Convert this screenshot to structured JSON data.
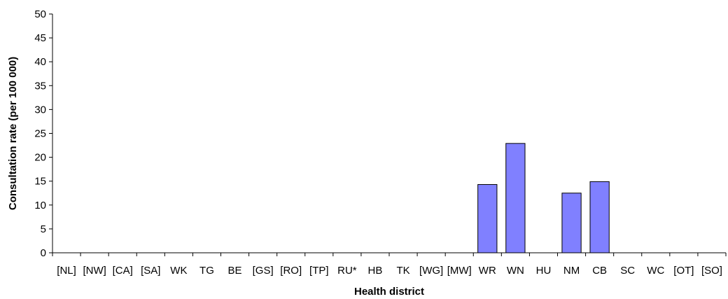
{
  "chart_data": {
    "type": "bar",
    "title": "",
    "xlabel": "Health district",
    "ylabel": "Consultation rate (per 100 000)",
    "ylim": [
      0,
      50
    ],
    "yticks": [
      0,
      5,
      10,
      15,
      20,
      25,
      30,
      35,
      40,
      45,
      50
    ],
    "grid": false,
    "legend": "none",
    "bar_color": "#8080ff",
    "categories": [
      "[NL]",
      "[NW]",
      "[CA]",
      "[SA]",
      "WK",
      "TG",
      "BE",
      "[GS]",
      "[RO]",
      "[TP]",
      "RU*",
      "HB",
      "TK",
      "[WG]",
      "[MW]",
      "WR",
      "WN",
      "HU",
      "NM",
      "CB",
      "SC",
      "WC",
      "[OT]",
      "[SO]"
    ],
    "values": [
      0,
      0,
      0,
      0,
      0,
      0,
      0,
      0,
      0,
      0,
      0,
      0,
      0,
      0,
      0,
      14.3,
      22.9,
      0,
      12.5,
      14.9,
      0,
      0,
      0,
      0
    ]
  }
}
